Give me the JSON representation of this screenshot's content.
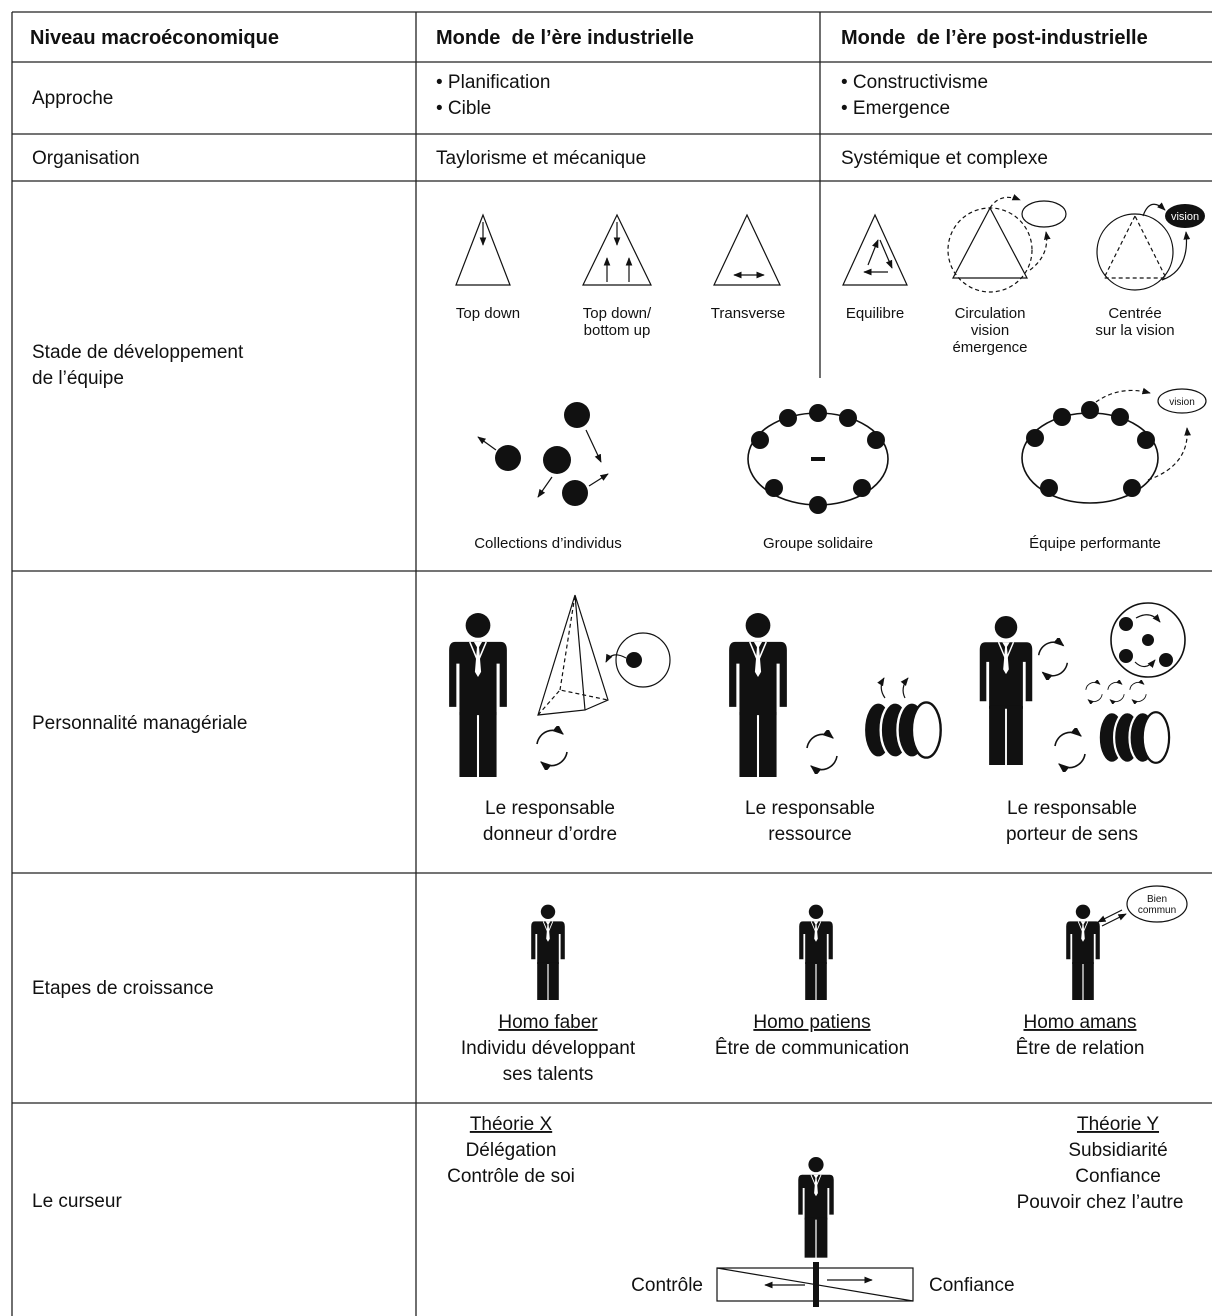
{
  "table": {
    "header": [
      "Niveau macroéconomique",
      "Monde  de l’ère industrielle",
      "Monde  de l’ère post-industrielle"
    ],
    "approche": {
      "label": "Approche",
      "industrial": [
        "• Planification",
        "• Cible"
      ],
      "post": [
        "• Constructivisme",
        "• Emergence"
      ]
    },
    "organisation": {
      "label": "Organisation",
      "industrial": "Taylorisme et mécanique",
      "post": "Systémique et complexe"
    },
    "equipe": {
      "label": [
        "Stade de développement",
        "de l’équipe"
      ],
      "industrial_shapes": [
        [
          "Top down"
        ],
        [
          "Top down/",
          "bottom up"
        ],
        [
          "Transverse"
        ]
      ],
      "post_shapes": [
        [
          "Equilibre"
        ],
        [
          "Circulation",
          "vision",
          "émergence"
        ],
        [
          "Centrée",
          "sur la vision"
        ]
      ],
      "vision_tags": [
        "vision",
        "vision"
      ],
      "groups": [
        "Collections d’individus",
        "Groupe solidaire",
        "Équipe performante"
      ]
    },
    "management": {
      "label": "Personnalité managériale",
      "types": [
        [
          "Le responsable",
          "donneur d’ordre"
        ],
        [
          "Le responsable",
          "ressource"
        ],
        [
          "Le responsable",
          "porteur de sens"
        ]
      ]
    },
    "croissance": {
      "label": "Etapes de croissance",
      "stages": [
        {
          "name": "Homo faber",
          "desc": [
            "Individu développant",
            "ses talents"
          ]
        },
        {
          "name": "Homo patiens",
          "desc": [
            "Être de communication"
          ]
        },
        {
          "name": "Homo amans",
          "desc": [
            "Être de relation"
          ]
        }
      ],
      "bubble": [
        "Bien",
        "commun"
      ]
    },
    "curseur": {
      "label": "Le curseur",
      "theory_x": {
        "name": "Théorie X",
        "lines": [
          "Délégation",
          "Contrôle de soi"
        ]
      },
      "theory_y": {
        "name": "Théorie Y",
        "lines": [
          "Subsidiarité",
          "Confiance",
          "Pouvoir chez l’autre"
        ]
      },
      "left": "Contrôle",
      "right": "Confiance"
    }
  }
}
